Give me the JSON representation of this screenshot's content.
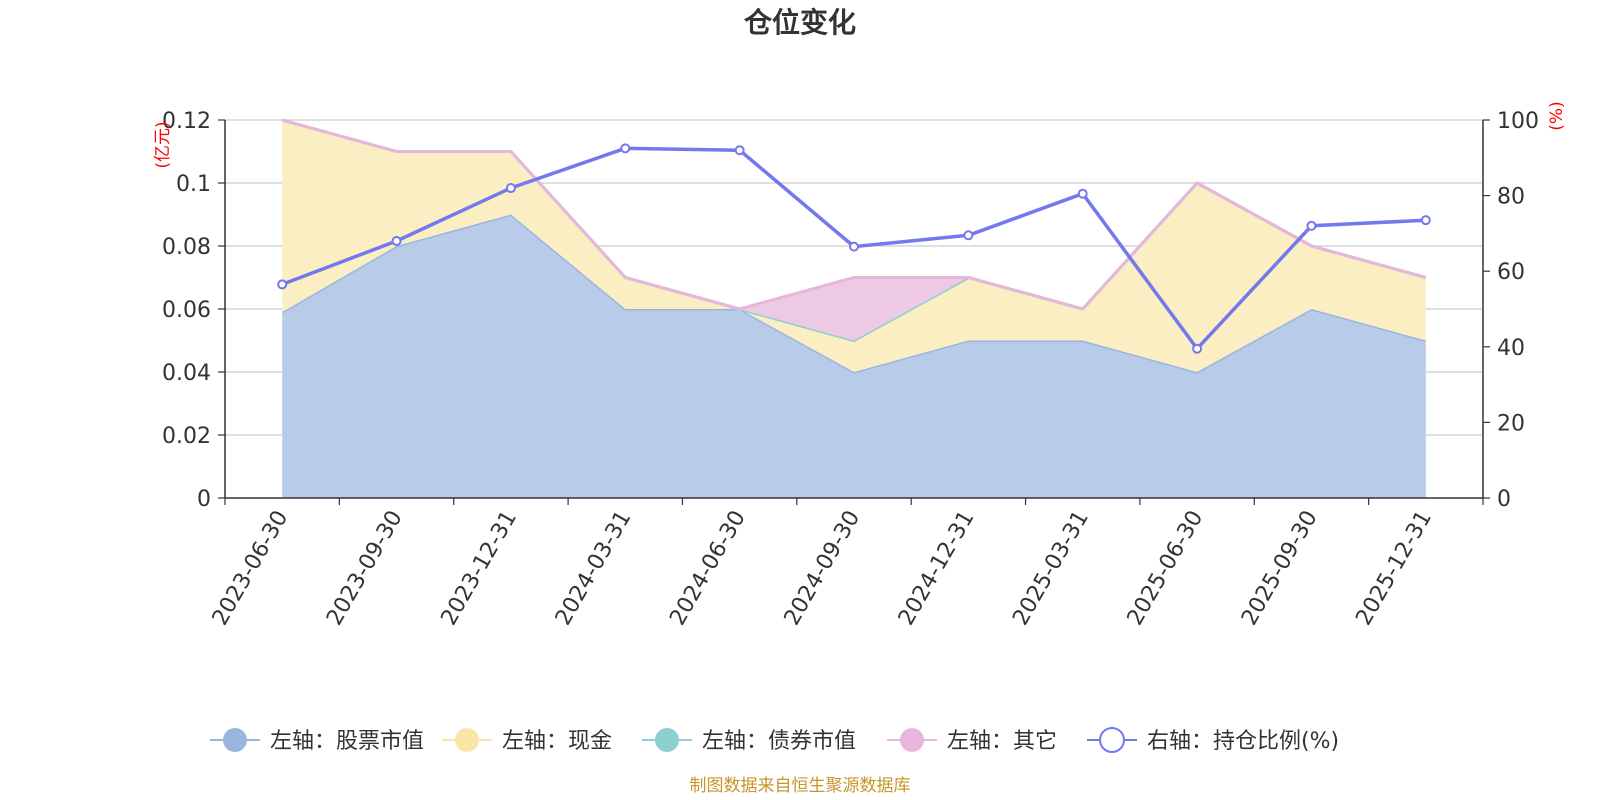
{
  "chart_data": {
    "type": "area",
    "title": "仓位变化",
    "left_axis_unit": "(亿元)",
    "right_axis_unit": "(%)",
    "categories": [
      "2023-06-30",
      "2023-09-30",
      "2023-12-31",
      "2024-03-31",
      "2024-06-30",
      "2024-09-30",
      "2024-12-31",
      "2025-03-31",
      "2025-06-30",
      "2025-09-30",
      "2025-12-31"
    ],
    "left_ylim": [
      0,
      0.12
    ],
    "left_ticks": [
      "0",
      "0.02",
      "0.04",
      "0.06",
      "0.08",
      "0.1",
      "0.12"
    ],
    "right_ylim": [
      0,
      100
    ],
    "right_ticks": [
      "0",
      "20",
      "40",
      "60",
      "80",
      "100"
    ],
    "series": [
      {
        "name": "左轴：股票市值",
        "axis": "left",
        "kind": "area",
        "stack": true,
        "color": "#9ab6e0",
        "fill": "#b8cce9",
        "values": [
          0.059,
          0.08,
          0.09,
          0.06,
          0.06,
          0.04,
          0.05,
          0.05,
          0.04,
          0.06,
          0.05
        ]
      },
      {
        "name": "左轴：现金",
        "axis": "left",
        "kind": "area",
        "stack": true,
        "color": "#f7e6a6",
        "fill": "#faeec2",
        "values": [
          0.061,
          0.03,
          0.02,
          0.01,
          0.0,
          0.01,
          0.02,
          0.01,
          0.06,
          0.02,
          0.02
        ]
      },
      {
        "name": "左轴：债券市值",
        "axis": "left",
        "kind": "area",
        "stack": true,
        "color": "#8ed0cf",
        "fill": "#bfe4e3",
        "values": [
          0,
          0,
          0,
          0,
          0,
          0,
          0,
          0,
          0,
          0,
          0
        ]
      },
      {
        "name": "左轴：其它",
        "axis": "left",
        "kind": "area",
        "stack": true,
        "color": "#e8b6da",
        "fill": "#edc9e3",
        "values": [
          0,
          0,
          0,
          0,
          0,
          0.02,
          0,
          0,
          0,
          0,
          0
        ]
      },
      {
        "name": "右轴：持仓比例(%)",
        "axis": "right",
        "kind": "line",
        "color": "#7478ee",
        "values": [
          56.5,
          68,
          82,
          92.5,
          92,
          66.5,
          69.5,
          80.5,
          39.5,
          72,
          73.5
        ]
      }
    ]
  },
  "source_note": "制图数据来自恒生聚源数据库"
}
